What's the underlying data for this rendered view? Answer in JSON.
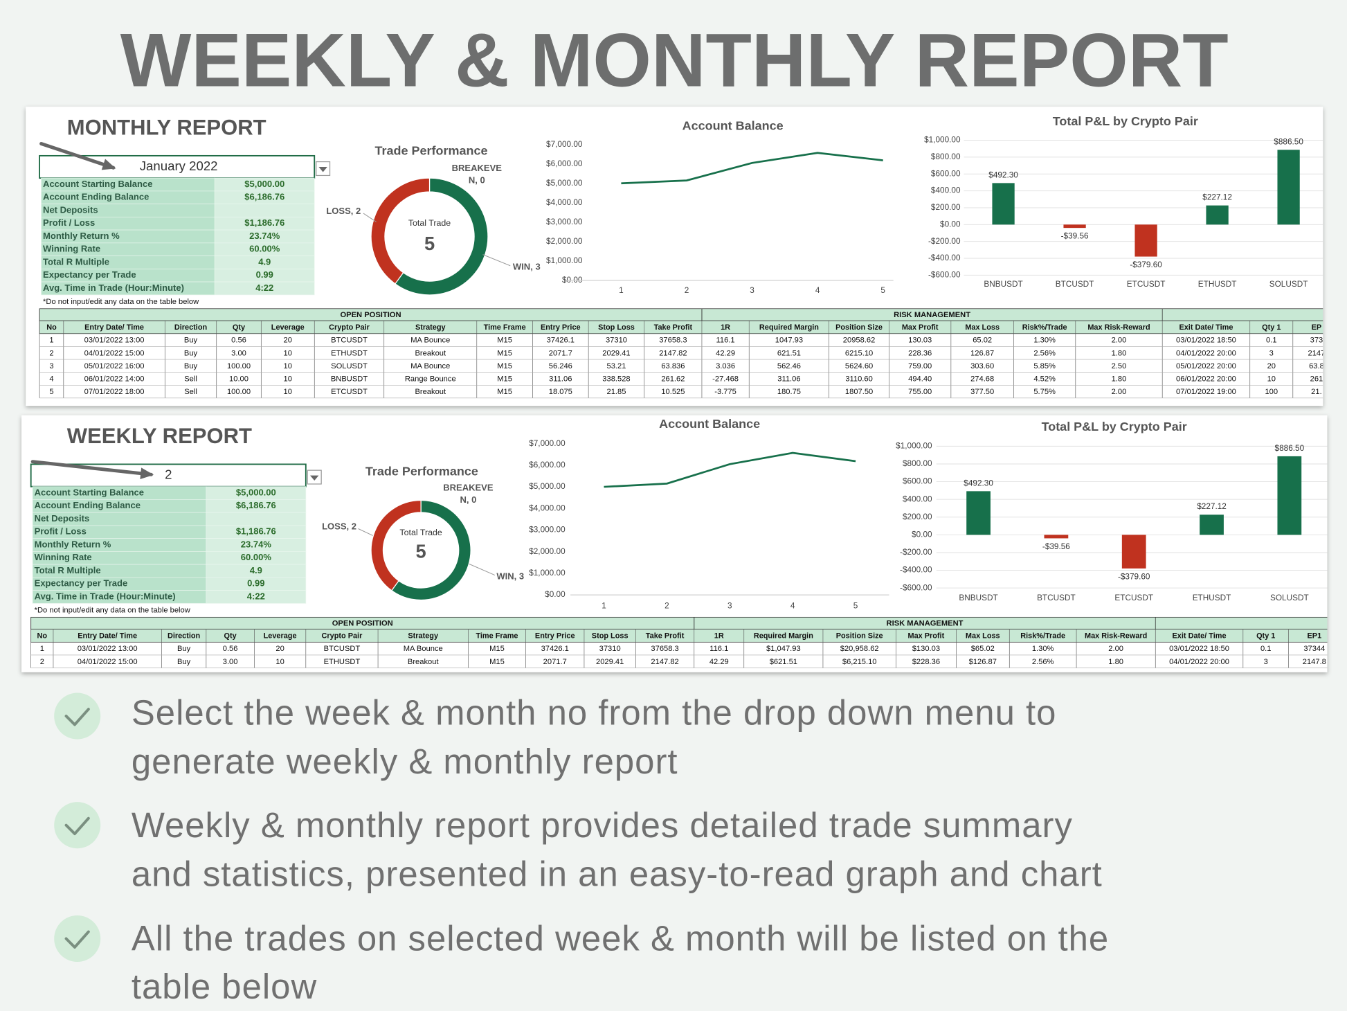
{
  "title": "WEEKLY & MONTHLY REPORT",
  "reports": [
    {
      "heading": "MONTHLY REPORT",
      "selector": "January 2022",
      "summary": [
        {
          "label": "Account Starting Balance",
          "value": "$5,000.00"
        },
        {
          "label": "Account Ending Balance",
          "value": "$6,186.76"
        },
        {
          "label": "Net Deposits",
          "value": null
        },
        {
          "label": "Profit / Loss",
          "value": "$1,186.76"
        },
        {
          "label": "Monthly Return %",
          "value": "23.74%"
        },
        {
          "label": "Winning Rate",
          "value": "60.00%"
        },
        {
          "label": "Total R Multiple",
          "value": "4.9"
        },
        {
          "label": "Expectancy per Trade",
          "value": "0.99"
        },
        {
          "label": "Avg. Time in Trade (Hour:Minute)",
          "value": "4:22"
        }
      ],
      "note": "*Do not input/edit any data on the table below",
      "donut": {
        "type": "pie",
        "title": "Trade Performance",
        "center_label": "Total Trade",
        "total": "5",
        "segments": [
          {
            "label": [
              "WIN, 3"
            ],
            "value": 3,
            "color": "#17704b"
          },
          {
            "label": [
              "LOSS, 2"
            ],
            "value": 2,
            "color": "#c0321f"
          },
          {
            "label": [
              "BREAKEVE",
              "N, 0"
            ],
            "value": 0,
            "color": "#9e9e9e"
          }
        ]
      },
      "balance_chart": {
        "type": "line",
        "title": "Account Balance",
        "categories": [
          "1",
          "2",
          "3",
          "4",
          "5"
        ],
        "values": [
          5000,
          5150,
          6050,
          6570,
          6187
        ],
        "color": "#17704b",
        "ylim": [
          0,
          7000
        ],
        "yticks": [
          {
            "value": 0,
            "label": "$0.00"
          },
          {
            "value": 1000,
            "label": "$1,000.00"
          },
          {
            "value": 2000,
            "label": "$2,000.00"
          },
          {
            "value": 3000,
            "label": "$3,000.00"
          },
          {
            "value": 4000,
            "label": "$4,000.00"
          },
          {
            "value": 5000,
            "label": "$5,000.00"
          },
          {
            "value": 6000,
            "label": "$6,000.00"
          },
          {
            "value": 7000,
            "label": "$7,000.00"
          }
        ]
      },
      "pnl_chart": {
        "type": "bar",
        "title": "Total P&L by Crypto Pair",
        "categories": [
          "BNBUSDT",
          "BTCUSDT",
          "ETCUSDT",
          "ETHUSDT",
          "SOLUSDT"
        ],
        "values": [
          492.3,
          -39.56,
          -379.6,
          227.12,
          886.5
        ],
        "value_labels": [
          "$492.30",
          "-$39.56",
          "-$379.60",
          "$227.12",
          "$886.50"
        ],
        "colors": [
          "#17704b",
          "#c0321f",
          "#c0321f",
          "#17704b",
          "#17704b"
        ],
        "ylim": [
          -600,
          1000
        ],
        "yticks": [
          {
            "value": -600,
            "label": "-$600.00"
          },
          {
            "value": -400,
            "label": "-$400.00"
          },
          {
            "value": -200,
            "label": "-$200.00"
          },
          {
            "value": 0,
            "label": "$0.00"
          },
          {
            "value": 200,
            "label": "$200.00"
          },
          {
            "value": 400,
            "label": "$400.00"
          },
          {
            "value": 600,
            "label": "$600.00"
          },
          {
            "value": 800,
            "label": "$800.00"
          },
          {
            "value": 1000,
            "label": "$1,000.00"
          }
        ],
        "grid": true
      },
      "table": {
        "groups": [
          "OPEN POSITION",
          "RISK MANAGEMENT"
        ],
        "columns": [
          "No",
          "Entry Date/ Time",
          "Direction",
          "Qty",
          "Leverage",
          "Crypto Pair",
          "Strategy",
          "Time Frame",
          "Entry Price",
          "Stop Loss",
          "Take Profit",
          "1R",
          "Required Margin",
          "Position Size",
          "Max Profit",
          "Max Loss",
          "Risk%/Trade",
          "Max Risk-Reward",
          "Exit Date/ Time",
          "Qty 1",
          "EP"
        ],
        "rows": [
          [
            "1",
            "03/01/2022 13:00",
            "Buy",
            "0.56",
            "20",
            "BTCUSDT",
            "MA Bounce",
            "M15",
            "37426.1",
            "37310",
            "37658.3",
            "116.1",
            "1047.93",
            "20958.62",
            "130.03",
            "65.02",
            "1.30%",
            "2.00",
            "03/01/2022 18:50",
            "0.1",
            "373"
          ],
          [
            "2",
            "04/01/2022 15:00",
            "Buy",
            "3.00",
            "10",
            "ETHUSDT",
            "Breakout",
            "M15",
            "2071.7",
            "2029.41",
            "2147.82",
            "42.29",
            "621.51",
            "6215.10",
            "228.36",
            "126.87",
            "2.56%",
            "1.80",
            "04/01/2022 20:00",
            "3",
            "2147"
          ],
          [
            "3",
            "05/01/2022 16:00",
            "Buy",
            "100.00",
            "10",
            "SOLUSDT",
            "MA Bounce",
            "M15",
            "56.246",
            "53.21",
            "63.836",
            "3.036",
            "562.46",
            "5624.60",
            "759.00",
            "303.60",
            "5.85%",
            "2.50",
            "05/01/2022 20:00",
            "20",
            "63.8"
          ],
          [
            "4",
            "06/01/2022 14:00",
            "Sell",
            "10.00",
            "10",
            "BNBUSDT",
            "Range Bounce",
            "M15",
            "311.06",
            "338.528",
            "261.62",
            "-27.468",
            "311.06",
            "3110.60",
            "494.40",
            "274.68",
            "4.52%",
            "1.80",
            "06/01/2022 20:00",
            "10",
            "261"
          ],
          [
            "5",
            "07/01/2022 18:00",
            "Sell",
            "100.00",
            "10",
            "ETCUSDT",
            "Breakout",
            "M15",
            "18.075",
            "21.85",
            "10.525",
            "-3.775",
            "180.75",
            "1807.50",
            "755.00",
            "377.50",
            "5.75%",
            "2.00",
            "07/01/2022 19:00",
            "100",
            "21."
          ]
        ]
      }
    },
    {
      "heading": "WEEKLY REPORT",
      "selector": "2",
      "summary": [
        {
          "label": "Account Starting Balance",
          "value": "$5,000.00"
        },
        {
          "label": "Account Ending Balance",
          "value": "$6,186.76"
        },
        {
          "label": "Net Deposits",
          "value": null
        },
        {
          "label": "Profit / Loss",
          "value": "$1,186.76"
        },
        {
          "label": "Monthly Return %",
          "value": "23.74%"
        },
        {
          "label": "Winning Rate",
          "value": "60.00%"
        },
        {
          "label": "Total R Multiple",
          "value": "4.9"
        },
        {
          "label": "Expectancy per Trade",
          "value": "0.99"
        },
        {
          "label": "Avg. Time in Trade (Hour:Minute)",
          "value": "4:22"
        }
      ],
      "note": "*Do not input/edit any data on the table below",
      "donut": {
        "type": "pie",
        "title": "Trade Performance",
        "center_label": "Total Trade",
        "total": "5",
        "segments": [
          {
            "label": [
              "WIN, 3"
            ],
            "value": 3,
            "color": "#17704b"
          },
          {
            "label": [
              "LOSS, 2"
            ],
            "value": 2,
            "color": "#c0321f"
          },
          {
            "label": [
              "BREAKEVE",
              "N, 0"
            ],
            "value": 0,
            "color": "#9e9e9e"
          }
        ]
      },
      "balance_chart": {
        "type": "line",
        "title": "Account Balance",
        "categories": [
          "1",
          "2",
          "3",
          "4",
          "5"
        ],
        "values": [
          5000,
          5150,
          6050,
          6570,
          6187
        ],
        "color": "#17704b",
        "ylim": [
          0,
          7000
        ],
        "yticks": [
          {
            "value": 0,
            "label": "$0.00"
          },
          {
            "value": 1000,
            "label": "$1,000.00"
          },
          {
            "value": 2000,
            "label": "$2,000.00"
          },
          {
            "value": 3000,
            "label": "$3,000.00"
          },
          {
            "value": 4000,
            "label": "$4,000.00"
          },
          {
            "value": 5000,
            "label": "$5,000.00"
          },
          {
            "value": 6000,
            "label": "$6,000.00"
          },
          {
            "value": 7000,
            "label": "$7,000.00"
          }
        ]
      },
      "pnl_chart": {
        "type": "bar",
        "title": "Total P&L by Crypto Pair",
        "categories": [
          "BNBUSDT",
          "BTCUSDT",
          "ETCUSDT",
          "ETHUSDT",
          "SOLUSDT"
        ],
        "values": [
          492.3,
          -39.56,
          -379.6,
          227.12,
          886.5
        ],
        "value_labels": [
          "$492.30",
          "-$39.56",
          "-$379.60",
          "$227.12",
          "$886.50"
        ],
        "colors": [
          "#17704b",
          "#c0321f",
          "#c0321f",
          "#17704b",
          "#17704b"
        ],
        "ylim": [
          -600,
          1000
        ],
        "yticks": [
          {
            "value": -600,
            "label": "-$600.00"
          },
          {
            "value": -400,
            "label": "-$400.00"
          },
          {
            "value": -200,
            "label": "-$200.00"
          },
          {
            "value": 0,
            "label": "$0.00"
          },
          {
            "value": 200,
            "label": "$200.00"
          },
          {
            "value": 400,
            "label": "$400.00"
          },
          {
            "value": 600,
            "label": "$600.00"
          },
          {
            "value": 800,
            "label": "$800.00"
          },
          {
            "value": 1000,
            "label": "$1,000.00"
          }
        ],
        "grid": true
      },
      "table": {
        "groups": [
          "OPEN POSITION",
          "RISK MANAGEMENT"
        ],
        "columns": [
          "No",
          "Entry Date/ Time",
          "Direction",
          "Qty",
          "Leverage",
          "Crypto Pair",
          "Strategy",
          "Time Frame",
          "Entry Price",
          "Stop Loss",
          "Take Profit",
          "1R",
          "Required Margin",
          "Position Size",
          "Max Profit",
          "Max Loss",
          "Risk%/Trade",
          "Max Risk-Reward",
          "Exit Date/ Time",
          "Qty 1",
          "EP1"
        ],
        "rows": [
          [
            "1",
            "03/01/2022 13:00",
            "Buy",
            "0.56",
            "20",
            "BTCUSDT",
            "MA Bounce",
            "M15",
            "37426.1",
            "37310",
            "37658.3",
            "116.1",
            "$1,047.93",
            "$20,958.62",
            "$130.03",
            "$65.02",
            "1.30%",
            "2.00",
            "03/01/2022 18:50",
            "0.1",
            "37344"
          ],
          [
            "2",
            "04/01/2022 15:00",
            "Buy",
            "3.00",
            "10",
            "ETHUSDT",
            "Breakout",
            "M15",
            "2071.7",
            "2029.41",
            "2147.82",
            "42.29",
            "$621.51",
            "$6,215.10",
            "$228.36",
            "$126.87",
            "2.56%",
            "1.80",
            "04/01/2022 20:00",
            "3",
            "2147.8"
          ]
        ]
      }
    }
  ],
  "bullets": [
    {
      "lines": [
        "Select the week & month no from the drop down menu to",
        "generate weekly & monthly report"
      ]
    },
    {
      "lines": [
        "Weekly & monthly report provides detailed trade summary",
        "and statistics, presented in an easy-to-read graph and chart"
      ]
    },
    {
      "lines": [
        "All the trades on selected week & month will be listed on the",
        "table below"
      ]
    }
  ]
}
